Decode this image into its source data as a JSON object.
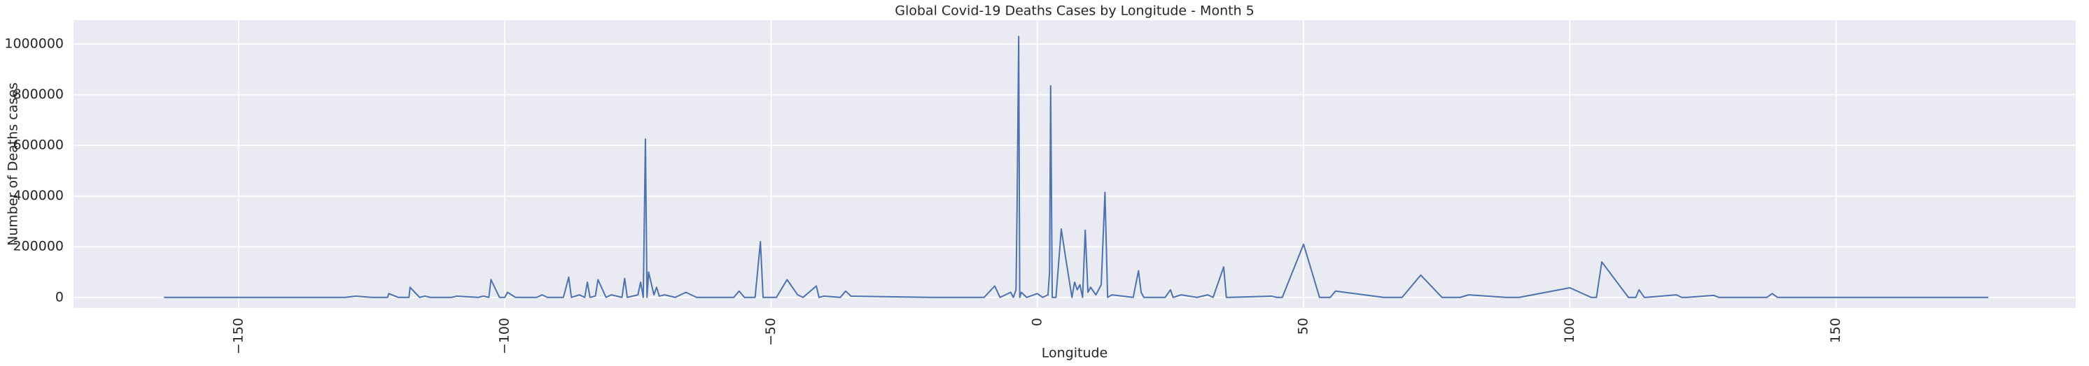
{
  "chart_data": {
    "type": "line",
    "title": "Global Covid-19 Deaths Cases by Longitude - Month 5",
    "x_label": "Longitude",
    "y_label": "Number of Deaths cases",
    "x": [
      -164,
      -130,
      -128,
      -125,
      -122,
      -121.8,
      -120,
      -118,
      -117.8,
      -116,
      -115,
      -114,
      -110,
      -109,
      -105,
      -104,
      -103,
      -102.6,
      -101,
      -100,
      -99.5,
      -98,
      -94,
      -93,
      -92,
      -89,
      -88,
      -87.5,
      -86,
      -85,
      -84.5,
      -84,
      -83,
      -82.5,
      -81,
      -80,
      -78,
      -77.5,
      -77,
      -75,
      -74.5,
      -74,
      -73.6,
      -73.3,
      -73,
      -72,
      -71.5,
      -71,
      -70,
      -68,
      -66,
      -64,
      -57,
      -56,
      -55,
      -53,
      -52,
      -51.5,
      -49,
      -47,
      -45,
      -44,
      -41.5,
      -41,
      -40,
      -37,
      -36,
      -35,
      -20,
      -10,
      -8,
      -7,
      -5,
      -4.5,
      -4,
      -3.8,
      -3.5,
      -3.3,
      -3,
      -2,
      0,
      1,
      2,
      2.3,
      2.5,
      2.8,
      3.5,
      4.5,
      5.2,
      6.5,
      7,
      7.5,
      8,
      8.5,
      9,
      9.5,
      10,
      11,
      12,
      12.7,
      13.2,
      14,
      18,
      19,
      19.5,
      20,
      24,
      25,
      25.5,
      27,
      30,
      32,
      33,
      35,
      35.5,
      36,
      44,
      45,
      46,
      50,
      53,
      54,
      55,
      56,
      65,
      68.5,
      72,
      76,
      79.4,
      81,
      88,
      90,
      90.5,
      100,
      104,
      105,
      106,
      111,
      112.4,
      113,
      114,
      114.3,
      120,
      121,
      122,
      127,
      128,
      137,
      138,
      139,
      150,
      178.6
    ],
    "series": [
      {
        "name": "Deaths",
        "color": "#4c72b0",
        "values": [
          0,
          0,
          5000,
          0,
          0,
          15000,
          0,
          0,
          40000,
          0,
          5000,
          0,
          0,
          5000,
          0,
          5000,
          0,
          70000,
          0,
          0,
          20000,
          0,
          0,
          10000,
          0,
          0,
          80000,
          0,
          10000,
          0,
          60000,
          0,
          5000,
          70000,
          0,
          10000,
          0,
          75000,
          0,
          10000,
          60000,
          0,
          625000,
          0,
          100000,
          10000,
          40000,
          5000,
          10000,
          0,
          20000,
          0,
          0,
          25000,
          0,
          0,
          220000,
          0,
          0,
          70000,
          10000,
          0,
          45000,
          0,
          5000,
          0,
          25000,
          5000,
          0,
          0,
          45000,
          0,
          20000,
          0,
          30000,
          360000,
          1030000,
          0,
          20000,
          0,
          15000,
          0,
          10000,
          100000,
          835000,
          0,
          0,
          270000,
          172000,
          0,
          60000,
          30000,
          50000,
          0,
          265000,
          20000,
          40000,
          10000,
          50000,
          415000,
          0,
          10000,
          0,
          105000,
          20000,
          0,
          0,
          30000,
          0,
          10000,
          0,
          10000,
          0,
          120000,
          0,
          0,
          5000,
          0,
          0,
          210000,
          0,
          0,
          0,
          25000,
          0,
          0,
          88000,
          0,
          0,
          10000,
          0,
          0,
          0,
          38000,
          0,
          0,
          140000,
          0,
          0,
          30000,
          0,
          0,
          10000,
          0,
          0,
          8000,
          0,
          0,
          15000,
          0,
          0,
          0
        ]
      }
    ],
    "xlim": [
      -181,
      195
    ],
    "ylim": [
      -42000,
      1094000
    ],
    "xticks": [
      {
        "value": -150,
        "label": "−150"
      },
      {
        "value": -100,
        "label": "−100"
      },
      {
        "value": -50,
        "label": "−50"
      },
      0,
      50,
      100,
      150
    ],
    "yticks": [
      0,
      200000,
      400000,
      600000,
      800000,
      1000000
    ],
    "grid": true
  }
}
